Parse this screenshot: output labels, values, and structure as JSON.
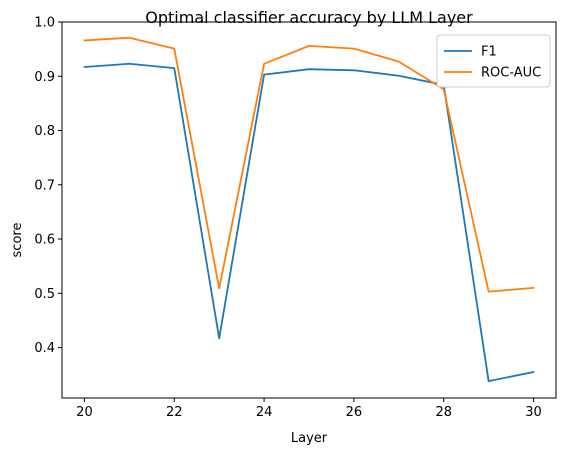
{
  "chart_data": {
    "type": "line",
    "title": "Optimal classifier accuracy by LLM Layer",
    "xlabel": "Layer",
    "ylabel": "score",
    "x": [
      20,
      21,
      22,
      23,
      24,
      25,
      26,
      27,
      28,
      29,
      30
    ],
    "xlim": [
      19.5,
      30.5
    ],
    "ylim": [
      0.307,
      1.0
    ],
    "xticks": [
      20,
      22,
      24,
      26,
      28,
      30
    ],
    "yticks": [
      0.4,
      0.5,
      0.6,
      0.7,
      0.8,
      0.9,
      1.0
    ],
    "ytick_labels": [
      "0.4",
      "0.5",
      "0.6",
      "0.7",
      "0.8",
      "0.9",
      "1.0"
    ],
    "grid": false,
    "legend_position": "top-right",
    "series": [
      {
        "name": "F1",
        "color": "#1f77b4",
        "values": [
          0.917,
          0.923,
          0.915,
          0.417,
          0.903,
          0.913,
          0.911,
          0.901,
          0.884,
          0.338,
          0.355
        ]
      },
      {
        "name": "ROC-AUC",
        "color": "#ff7f0e",
        "values": [
          0.966,
          0.971,
          0.951,
          0.509,
          0.923,
          0.956,
          0.951,
          0.927,
          0.876,
          0.503,
          0.51
        ]
      }
    ]
  }
}
